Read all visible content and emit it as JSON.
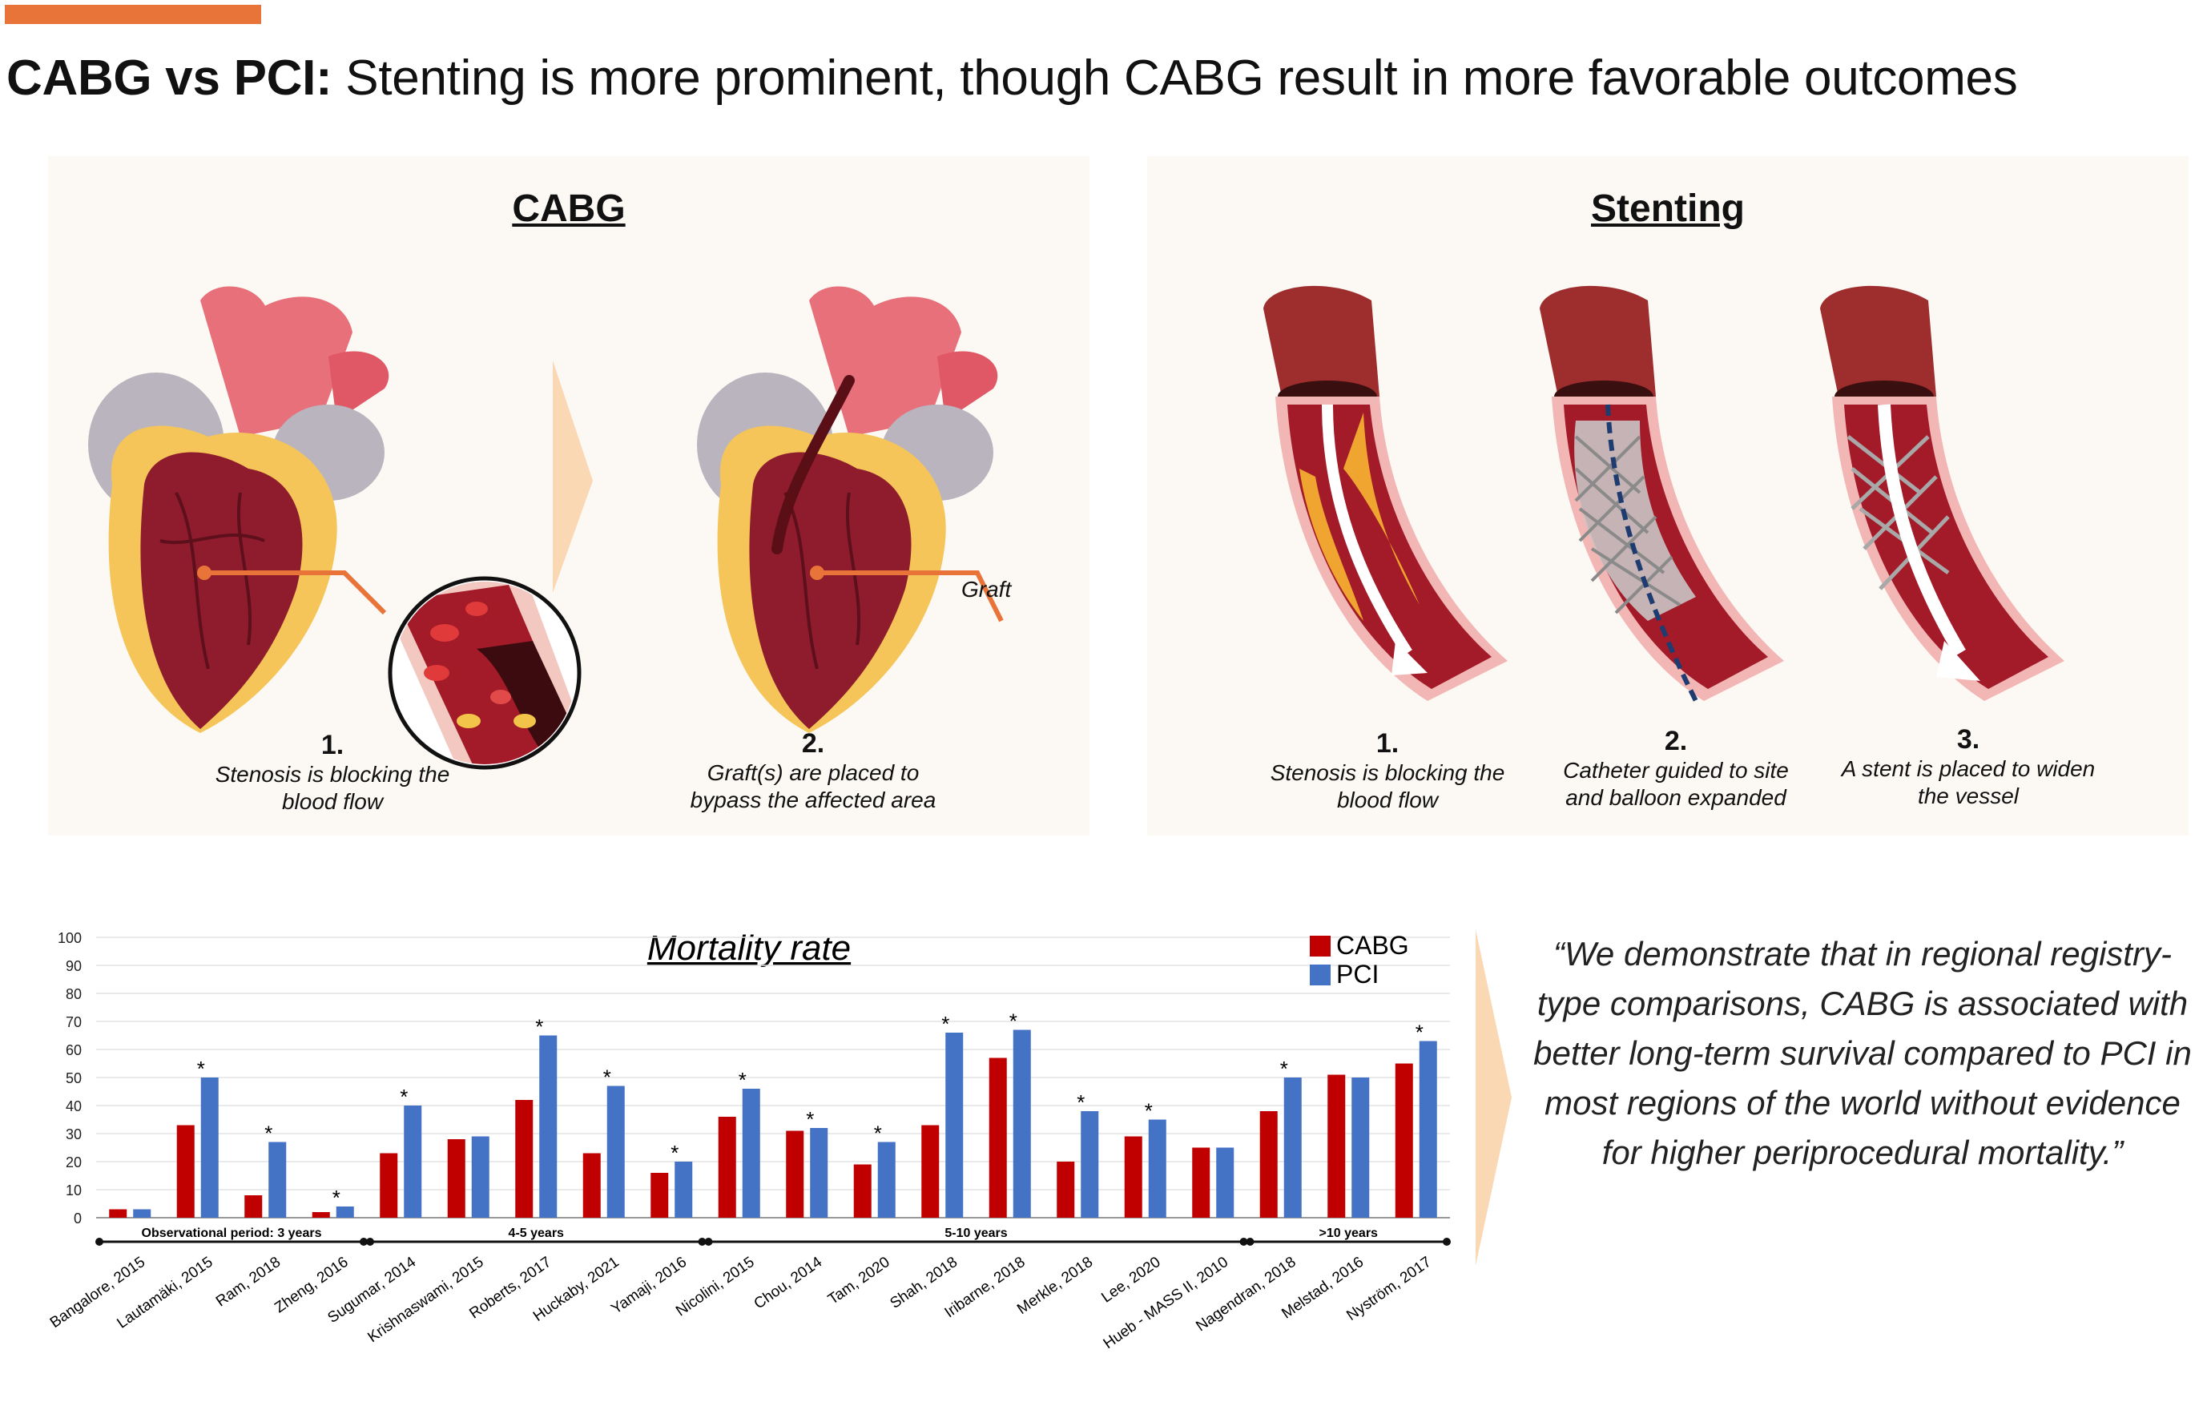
{
  "header": {
    "title_bold": "CABG vs PCI:",
    "title_rest": " Stenting is more prominent, though CABG result in more favorable outcomes",
    "accent_color": "#e8743a"
  },
  "cabg_panel": {
    "title": "CABG",
    "graft_label": "Graft",
    "steps": [
      {
        "number": "1.",
        "text_line1": "Stenosis is blocking the",
        "text_line2": "blood flow"
      },
      {
        "number": "2.",
        "text_line1": "Graft(s) are placed to",
        "text_line2": "bypass the affected area"
      }
    ]
  },
  "stent_panel": {
    "title": "Stenting",
    "steps": [
      {
        "number": "1.",
        "text_line1": "Stenosis is blocking the",
        "text_line2": "blood flow"
      },
      {
        "number": "2.",
        "text_line1": "Catheter guided to site",
        "text_line2": "and balloon expanded"
      },
      {
        "number": "3.",
        "text_line1": "A stent is placed to widen",
        "text_line2": "the vessel"
      }
    ]
  },
  "quote": {
    "text": "“We demonstrate that in regional registry-type comparisons, CABG is associated with better long-term survival compared to PCI in most regions of the world without evidence for higher periprocedural mortality.”"
  },
  "chart_data": {
    "type": "bar",
    "title": "Mortality rate",
    "ylim": [
      0,
      100
    ],
    "yticks": [
      0,
      10,
      20,
      30,
      40,
      50,
      60,
      70,
      80,
      90,
      100
    ],
    "categories": [
      "Bangalore, 2015",
      "Lautamäki, 2015",
      "Ram, 2018",
      "Zheng, 2016",
      "Sugumar, 2014",
      "Krishnaswami, 2015",
      "Roberts, 2017",
      "Huckaby, 2021",
      "Yamaji, 2016",
      "Nicolini, 2015",
      "Chou, 2014",
      "Tam, 2020",
      "Shah, 2018",
      "Iribarne, 2018",
      "Merkle, 2018",
      "Lee, 2020",
      "Hueb - MASS II, 2010",
      "Nagendran, 2018",
      "Melstad, 2016",
      "Nyström, 2017"
    ],
    "series": [
      {
        "name": "CABG",
        "color": "#c00000",
        "values": [
          3,
          33,
          8,
          2,
          23,
          28,
          42,
          23,
          16,
          36,
          31,
          19,
          33,
          57,
          20,
          29,
          25,
          38,
          51,
          55
        ]
      },
      {
        "name": "PCI",
        "color": "#4472c4",
        "values": [
          3,
          50,
          27,
          4,
          40,
          29,
          65,
          47,
          20,
          46,
          32,
          27,
          66,
          67,
          38,
          35,
          25,
          50,
          50,
          63
        ]
      }
    ],
    "significant_marker": "*",
    "significant": [
      false,
      true,
      true,
      true,
      true,
      false,
      true,
      true,
      true,
      true,
      true,
      true,
      true,
      true,
      true,
      true,
      false,
      true,
      false,
      true
    ],
    "periods": [
      {
        "label": "Observational period: 3 years",
        "from": 0,
        "to": 3
      },
      {
        "label": "4-5 years",
        "from": 4,
        "to": 8
      },
      {
        "label": "5-10 years",
        "from": 9,
        "to": 16
      },
      {
        "label": ">10 years",
        "from": 17,
        "to": 19
      }
    ]
  }
}
